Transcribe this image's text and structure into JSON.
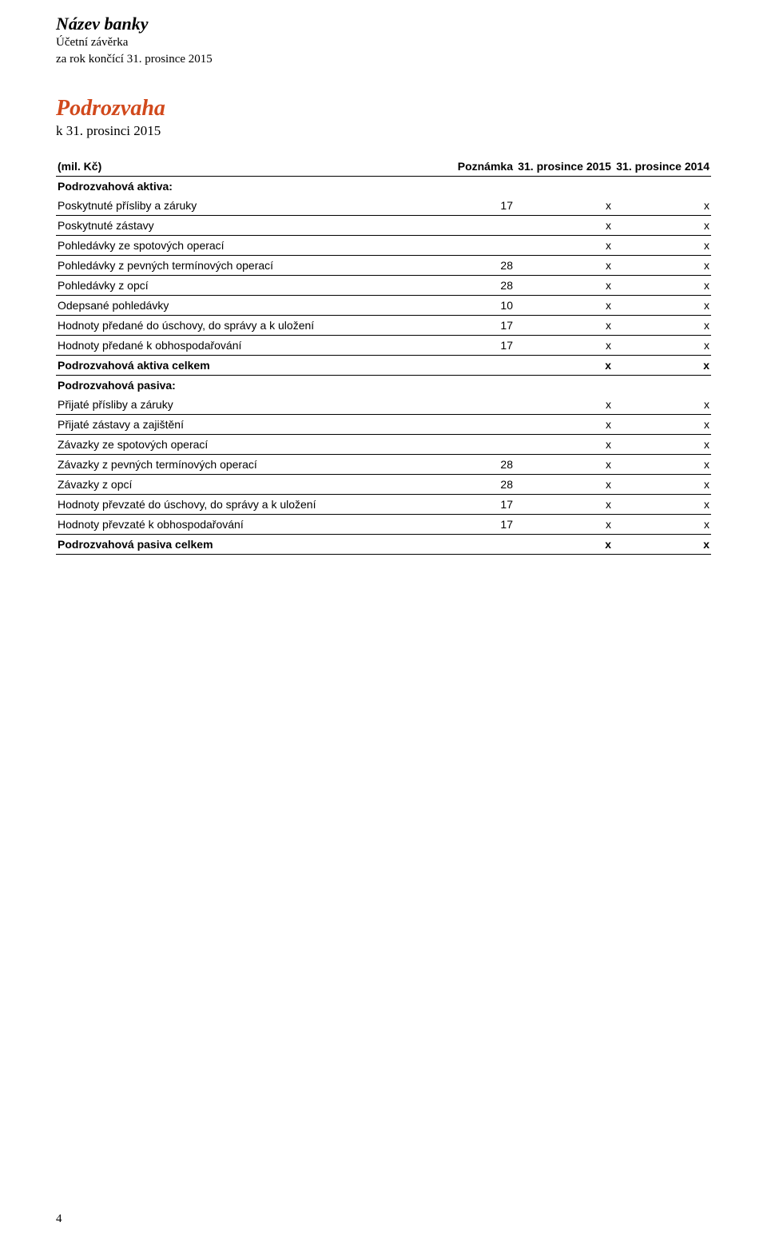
{
  "header": {
    "bank_name": "Název banky",
    "line1": "Účetní závěrka",
    "line2": "za rok končící 31. prosince 2015"
  },
  "section": {
    "title": "Podrozvaha",
    "date": "k 31. prosinci 2015",
    "title_color": "#d1491c"
  },
  "table": {
    "columns": [
      "(mil. Kč)",
      "Poznámka",
      "31. prosince 2015",
      "31. prosince 2014"
    ],
    "rows": [
      {
        "label": "Podrozvahová aktiva:",
        "note": "",
        "v1": "",
        "v2": "",
        "bold": true,
        "noBorder": true
      },
      {
        "label": "Poskytnuté přísliby a záruky",
        "note": "17",
        "v1": "x",
        "v2": "x"
      },
      {
        "label": "Poskytnuté zástavy",
        "note": "",
        "v1": "x",
        "v2": "x"
      },
      {
        "label": "Pohledávky ze spotových operací",
        "note": "",
        "v1": "x",
        "v2": "x"
      },
      {
        "label": "Pohledávky z pevných termínových operací",
        "note": "28",
        "v1": "x",
        "v2": "x"
      },
      {
        "label": "Pohledávky z opcí",
        "note": "28",
        "v1": "x",
        "v2": "x"
      },
      {
        "label": "Odepsané pohledávky",
        "note": "10",
        "v1": "x",
        "v2": "x"
      },
      {
        "label": "Hodnoty předané do úschovy, do správy a k uložení",
        "note": "17",
        "v1": "x",
        "v2": "x"
      },
      {
        "label": "Hodnoty předané k obhospodařování",
        "note": "17",
        "v1": "x",
        "v2": "x"
      },
      {
        "label": "Podrozvahová aktiva celkem",
        "note": "",
        "v1": "x",
        "v2": "x",
        "bold": true
      },
      {
        "label": "Podrozvahová pasiva:",
        "note": "",
        "v1": "",
        "v2": "",
        "bold": true,
        "noBorder": true
      },
      {
        "label": "Přijaté přísliby a záruky",
        "note": "",
        "v1": "x",
        "v2": "x"
      },
      {
        "label": "Přijaté zástavy a zajištění",
        "note": "",
        "v1": "x",
        "v2": "x"
      },
      {
        "label": "Závazky ze spotových operací",
        "note": "",
        "v1": "x",
        "v2": "x"
      },
      {
        "label": "Závazky z pevných termínových operací",
        "note": "28",
        "v1": "x",
        "v2": "x"
      },
      {
        "label": "Závazky z opcí",
        "note": "28",
        "v1": "x",
        "v2": "x"
      },
      {
        "label": "Hodnoty převzaté do úschovy, do správy a k uložení",
        "note": "17",
        "v1": "x",
        "v2": "x"
      },
      {
        "label": "Hodnoty převzaté k obhospodařování",
        "note": "17",
        "v1": "x",
        "v2": "x"
      },
      {
        "label": "Podrozvahová pasiva celkem",
        "note": "",
        "v1": "x",
        "v2": "x",
        "bold": true
      }
    ]
  },
  "page_number": "4"
}
